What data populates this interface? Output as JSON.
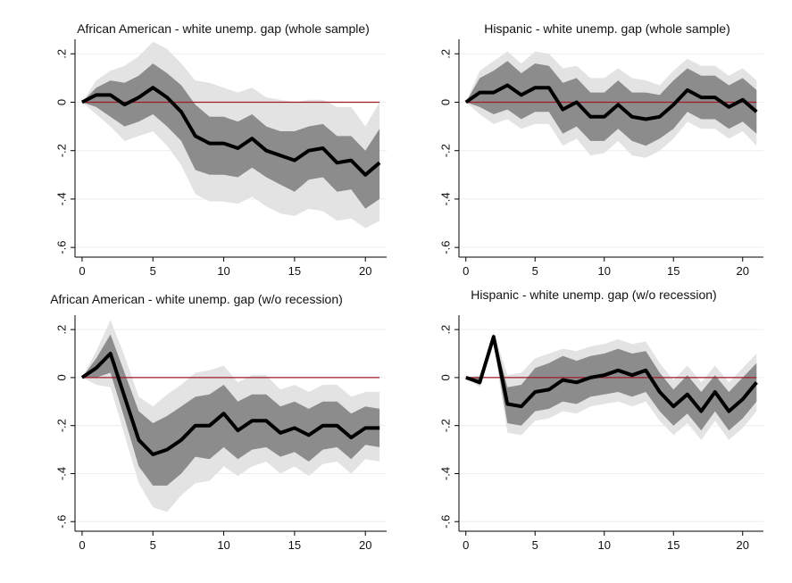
{
  "colors": {
    "ci90": "#e3e3e3",
    "ci68": "#8c8c8c",
    "irf_line": "#000000",
    "zero_line": "#9b1b2b",
    "gridline": "#eeeeee"
  },
  "chart_data": [
    {
      "type": "area",
      "title": "African American - white unemp. gap (whole sample)",
      "xlabel": "",
      "ylabel": "",
      "x_ticks": [
        0,
        5,
        10,
        15,
        20
      ],
      "y_ticks": [
        0.2,
        0,
        -0.2,
        -0.4,
        -0.6
      ],
      "y_tick_labels": [
        ".2",
        "0",
        "-.2",
        "-.4",
        "-.6"
      ],
      "xlim": [
        0,
        21
      ],
      "ylim": [
        -0.6,
        0.2
      ],
      "grid": true,
      "reference_line": 0,
      "x": [
        0,
        1,
        2,
        3,
        4,
        5,
        6,
        7,
        8,
        9,
        10,
        11,
        12,
        13,
        14,
        15,
        16,
        17,
        18,
        19,
        20,
        21
      ],
      "series": [
        {
          "values": [
            0,
            0.03,
            0.03,
            -0.01,
            0.02,
            0.06,
            0.02,
            -0.04,
            -0.14,
            -0.17,
            -0.17,
            -0.19,
            -0.15,
            -0.2,
            -0.22,
            -0.24,
            -0.2,
            -0.19,
            -0.25,
            -0.24,
            -0.3,
            -0.25
          ]
        }
      ],
      "band_inner_upper": [
        0,
        0.06,
        0.09,
        0.08,
        0.11,
        0.16,
        0.12,
        0.07,
        -0.01,
        -0.06,
        -0.06,
        -0.08,
        -0.05,
        -0.1,
        -0.12,
        -0.12,
        -0.1,
        -0.09,
        -0.14,
        -0.14,
        -0.2,
        -0.11
      ],
      "band_inner_lower": [
        0,
        -0.02,
        -0.06,
        -0.1,
        -0.08,
        -0.05,
        -0.1,
        -0.16,
        -0.28,
        -0.3,
        -0.3,
        -0.31,
        -0.27,
        -0.31,
        -0.34,
        -0.37,
        -0.32,
        -0.31,
        -0.37,
        -0.36,
        -0.44,
        -0.4
      ],
      "band_outer_upper": [
        0,
        0.09,
        0.13,
        0.15,
        0.19,
        0.25,
        0.22,
        0.16,
        0.09,
        0.08,
        0.06,
        0.04,
        0.06,
        0.02,
        0.01,
        0.0,
        0.01,
        0.01,
        -0.02,
        -0.02,
        -0.1,
        0.0
      ],
      "band_outer_lower": [
        0,
        -0.05,
        -0.1,
        -0.16,
        -0.14,
        -0.12,
        -0.18,
        -0.26,
        -0.38,
        -0.41,
        -0.41,
        -0.42,
        -0.39,
        -0.43,
        -0.46,
        -0.47,
        -0.44,
        -0.45,
        -0.49,
        -0.48,
        -0.52,
        -0.49
      ]
    },
    {
      "type": "area",
      "title": "Hispanic - white unemp. gap (whole sample)",
      "xlabel": "",
      "ylabel": "",
      "x_ticks": [
        0,
        5,
        10,
        15,
        20
      ],
      "y_ticks": [
        0.2,
        0,
        -0.2,
        -0.4,
        -0.6
      ],
      "y_tick_labels": [
        ".2",
        "0",
        "-.2",
        "-.4",
        "-.6"
      ],
      "xlim": [
        0,
        21
      ],
      "ylim": [
        -0.6,
        0.2
      ],
      "grid": true,
      "reference_line": 0,
      "x": [
        0,
        1,
        2,
        3,
        4,
        5,
        6,
        7,
        8,
        9,
        10,
        11,
        12,
        13,
        14,
        15,
        16,
        17,
        18,
        19,
        20,
        21
      ],
      "series": [
        {
          "values": [
            0,
            0.04,
            0.04,
            0.07,
            0.03,
            0.06,
            0.06,
            -0.03,
            0.0,
            -0.06,
            -0.06,
            -0.01,
            -0.06,
            -0.07,
            -0.06,
            -0.01,
            0.05,
            0.02,
            0.02,
            -0.02,
            0.01,
            -0.04
          ]
        }
      ],
      "band_inner_upper": [
        0,
        0.1,
        0.13,
        0.17,
        0.12,
        0.16,
        0.15,
        0.08,
        0.1,
        0.04,
        0.04,
        0.09,
        0.04,
        0.04,
        0.03,
        0.09,
        0.14,
        0.11,
        0.11,
        0.07,
        0.1,
        0.05
      ],
      "band_inner_lower": [
        0,
        -0.02,
        -0.05,
        -0.03,
        -0.07,
        -0.04,
        -0.04,
        -0.13,
        -0.1,
        -0.16,
        -0.16,
        -0.11,
        -0.16,
        -0.18,
        -0.15,
        -0.11,
        -0.04,
        -0.07,
        -0.07,
        -0.11,
        -0.08,
        -0.13
      ],
      "band_outer_upper": [
        0,
        0.13,
        0.17,
        0.21,
        0.16,
        0.21,
        0.2,
        0.14,
        0.15,
        0.1,
        0.1,
        0.14,
        0.1,
        0.09,
        0.07,
        0.13,
        0.18,
        0.15,
        0.15,
        0.11,
        0.14,
        0.09
      ],
      "band_outer_lower": [
        0,
        -0.05,
        -0.09,
        -0.07,
        -0.11,
        -0.09,
        -0.09,
        -0.18,
        -0.15,
        -0.22,
        -0.21,
        -0.16,
        -0.22,
        -0.23,
        -0.2,
        -0.15,
        -0.08,
        -0.11,
        -0.11,
        -0.15,
        -0.12,
        -0.18
      ]
    },
    {
      "type": "area",
      "title": "African American - white unemp. gap (w/o recession)",
      "xlabel": "",
      "ylabel": "",
      "x_ticks": [
        0,
        5,
        10,
        15,
        20
      ],
      "y_ticks": [
        0.2,
        0,
        -0.2,
        -0.4,
        -0.6
      ],
      "y_tick_labels": [
        ".2",
        "0",
        "-.2",
        "-.4",
        "-.6"
      ],
      "xlim": [
        0,
        21
      ],
      "ylim": [
        -0.6,
        0.2
      ],
      "grid": true,
      "reference_line": 0,
      "x": [
        0,
        1,
        2,
        3,
        4,
        5,
        6,
        7,
        8,
        9,
        10,
        11,
        12,
        13,
        14,
        15,
        16,
        17,
        18,
        19,
        20,
        21
      ],
      "series": [
        {
          "values": [
            0,
            0.04,
            0.1,
            -0.08,
            -0.26,
            -0.32,
            -0.3,
            -0.26,
            -0.2,
            -0.2,
            -0.15,
            -0.22,
            -0.18,
            -0.18,
            -0.23,
            -0.21,
            -0.24,
            -0.2,
            -0.2,
            -0.25,
            -0.21,
            -0.21
          ]
        }
      ],
      "band_inner_upper": [
        0,
        0.08,
        0.18,
        0.02,
        -0.14,
        -0.19,
        -0.16,
        -0.12,
        -0.08,
        -0.07,
        -0.03,
        -0.1,
        -0.07,
        -0.07,
        -0.12,
        -0.1,
        -0.13,
        -0.1,
        -0.1,
        -0.15,
        -0.12,
        -0.13
      ],
      "band_inner_lower": [
        0,
        0.0,
        0.02,
        -0.17,
        -0.37,
        -0.45,
        -0.45,
        -0.4,
        -0.33,
        -0.34,
        -0.29,
        -0.34,
        -0.3,
        -0.29,
        -0.33,
        -0.31,
        -0.35,
        -0.3,
        -0.29,
        -0.34,
        -0.28,
        -0.29
      ],
      "band_outer_upper": [
        0,
        0.11,
        0.24,
        0.09,
        -0.08,
        -0.12,
        -0.07,
        -0.03,
        0.02,
        0.03,
        0.05,
        -0.02,
        0.01,
        0.01,
        -0.05,
        -0.03,
        -0.06,
        -0.03,
        -0.03,
        -0.08,
        -0.06,
        -0.06
      ],
      "band_outer_lower": [
        0,
        -0.03,
        -0.04,
        -0.24,
        -0.44,
        -0.54,
        -0.56,
        -0.49,
        -0.44,
        -0.43,
        -0.37,
        -0.41,
        -0.37,
        -0.35,
        -0.4,
        -0.37,
        -0.41,
        -0.36,
        -0.35,
        -0.4,
        -0.34,
        -0.35
      ]
    },
    {
      "type": "area",
      "title": "Hispanic - white unemp. gap (w/o recession)",
      "xlabel": "",
      "ylabel": "",
      "x_ticks": [
        0,
        5,
        10,
        15,
        20
      ],
      "y_ticks": [
        0.2,
        0,
        -0.2,
        -0.4,
        -0.6
      ],
      "y_tick_labels": [
        ".2",
        "0",
        "-.2",
        "-.4",
        "-.6"
      ],
      "xlim": [
        0,
        21
      ],
      "ylim": [
        -0.6,
        0.2
      ],
      "grid": true,
      "reference_line": 0,
      "x": [
        0,
        1,
        2,
        3,
        4,
        5,
        6,
        7,
        8,
        9,
        10,
        11,
        12,
        13,
        14,
        15,
        16,
        17,
        18,
        19,
        20,
        21
      ],
      "series": [
        {
          "values": [
            0,
            -0.02,
            0.17,
            -0.11,
            -0.12,
            -0.06,
            -0.05,
            -0.01,
            -0.02,
            0.0,
            0.01,
            0.03,
            0.01,
            0.03,
            -0.06,
            -0.12,
            -0.07,
            -0.14,
            -0.06,
            -0.14,
            -0.09,
            -0.02
          ]
        }
      ],
      "band_inner_upper": [
        0,
        0.0,
        0.18,
        -0.04,
        -0.03,
        0.04,
        0.06,
        0.09,
        0.07,
        0.09,
        0.1,
        0.12,
        0.1,
        0.11,
        0.02,
        -0.05,
        0.01,
        -0.06,
        0.01,
        -0.06,
        0.0,
        0.06
      ],
      "band_inner_lower": [
        0,
        -0.03,
        0.15,
        -0.19,
        -0.2,
        -0.14,
        -0.13,
        -0.1,
        -0.11,
        -0.08,
        -0.07,
        -0.06,
        -0.08,
        -0.06,
        -0.14,
        -0.2,
        -0.15,
        -0.22,
        -0.14,
        -0.22,
        -0.17,
        -0.1
      ],
      "band_outer_upper": [
        0,
        0.01,
        0.19,
        0.01,
        0.02,
        0.08,
        0.1,
        0.12,
        0.11,
        0.13,
        0.14,
        0.16,
        0.14,
        0.15,
        0.06,
        -0.01,
        0.05,
        -0.02,
        0.05,
        -0.02,
        0.04,
        0.1
      ],
      "band_outer_lower": [
        0,
        -0.04,
        0.14,
        -0.23,
        -0.24,
        -0.18,
        -0.17,
        -0.14,
        -0.15,
        -0.12,
        -0.11,
        -0.1,
        -0.12,
        -0.1,
        -0.18,
        -0.24,
        -0.19,
        -0.26,
        -0.18,
        -0.26,
        -0.21,
        -0.14
      ]
    }
  ]
}
